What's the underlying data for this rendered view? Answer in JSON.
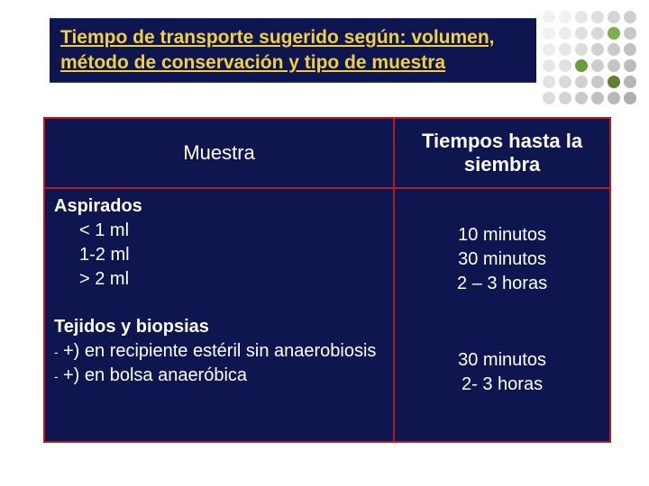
{
  "title": {
    "line1": "Tiempo de transporte sugerido según: volumen,",
    "line2": "método de conservación y tipo de muestra"
  },
  "dotGrid": {
    "colors": [
      "#f2f2f2",
      "#f2f2f2",
      "#e6e6e6",
      "#dedede",
      "#d6d6d6",
      "#cfcfcf",
      "#f2f2f2",
      "#ededed",
      "#e0e0e0",
      "#d8d8d8",
      "#7fae4a",
      "#c8c8c8",
      "#ededed",
      "#e6e6e6",
      "#dcdcdc",
      "#d2d2d2",
      "#cacaca",
      "#c2c2c2",
      "#e8e8e8",
      "#e0e0e0",
      "#6f9a3e",
      "#cccccc",
      "#c4c4c4",
      "#bcbcbc",
      "#e2e2e2",
      "#dadada",
      "#d0d0d0",
      "#c8c8c8",
      "#5f8232",
      "#b6b6b6",
      "#dcdcdc",
      "#d4d4d4",
      "#cacaca",
      "#c0c0c0",
      "#b8b8b8",
      "#b0b0b0"
    ]
  },
  "table": {
    "header": {
      "left": "Muestra",
      "right": "Tiempos hasta la siembra"
    },
    "section1": {
      "title": "Aspirados",
      "items": [
        "< 1 ml",
        "1-2 ml",
        "> 2 ml"
      ],
      "times": [
        "10 minutos",
        "30 minutos",
        "2 – 3 horas"
      ]
    },
    "section2": {
      "title": "Tejidos y biopsias",
      "items": [
        "+) en recipiente estéril sin anaerobiosis",
        "+) en bolsa anaeróbica"
      ],
      "times": [
        "30 minutos",
        "2- 3 horas"
      ]
    }
  },
  "colors": {
    "slide_bg": "#ffffff",
    "panel_bg": "#0f154f",
    "panel_border": "#b02020",
    "title_text": "#f0d040",
    "body_text": "#ffffff"
  }
}
